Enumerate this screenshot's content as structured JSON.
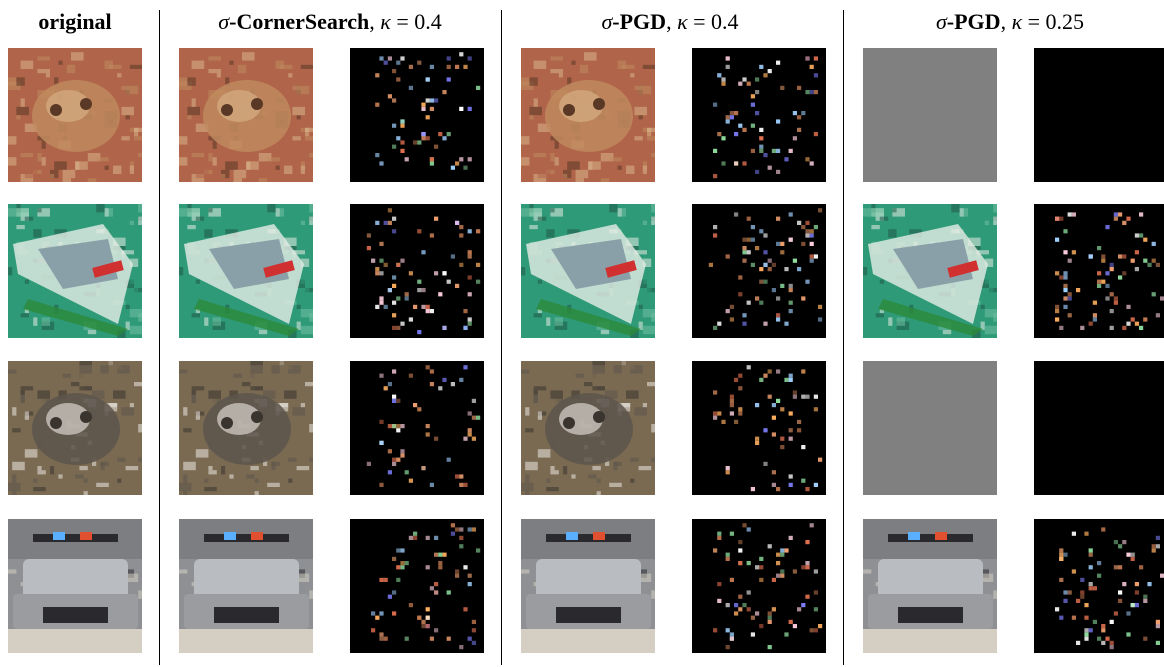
{
  "headers": {
    "original": "original",
    "cornersearch": {
      "sigma": "σ",
      "method": "-CornerSearch",
      "sep": ", ",
      "kappa_sym": "κ",
      "eq": " = ",
      "kappa_val": "0.4"
    },
    "pgd_04": {
      "sigma": "σ",
      "method": "-PGD",
      "sep": ", ",
      "kappa_sym": "κ",
      "eq": " = ",
      "kappa_val": "0.4"
    },
    "pgd_025": {
      "sigma": "σ",
      "method": "-PGD",
      "sep": ", ",
      "kappa_sym": "κ",
      "eq": " = ",
      "kappa_val": "0.25"
    }
  },
  "rows": [
    {
      "subject": "frog",
      "palette": {
        "bg": "#b0654a",
        "mid": "#c08a5e",
        "light": "#d9b48a",
        "dark": "#5a3826"
      },
      "pgd_025_failed": true
    },
    {
      "subject": "ship",
      "palette": {
        "bg": "#2f9a78",
        "mid": "#6fbfa0",
        "light": "#e6ece6",
        "dark": "#1f5a48"
      },
      "pgd_025_failed": false
    },
    {
      "subject": "frog",
      "palette": {
        "bg": "#7a6a52",
        "mid": "#5d554c",
        "light": "#ece8e2",
        "dark": "#3a342e"
      },
      "pgd_025_failed": true
    },
    {
      "subject": "car",
      "palette": {
        "bg": "#8e9094",
        "mid": "#b9bcc0",
        "light": "#d4cfc2",
        "dark": "#2a2a2e"
      },
      "pgd_025_failed": false
    }
  ],
  "colors": {
    "failed_image": "#808080",
    "empty_perturbation": "#000000",
    "divider": "#000000"
  }
}
